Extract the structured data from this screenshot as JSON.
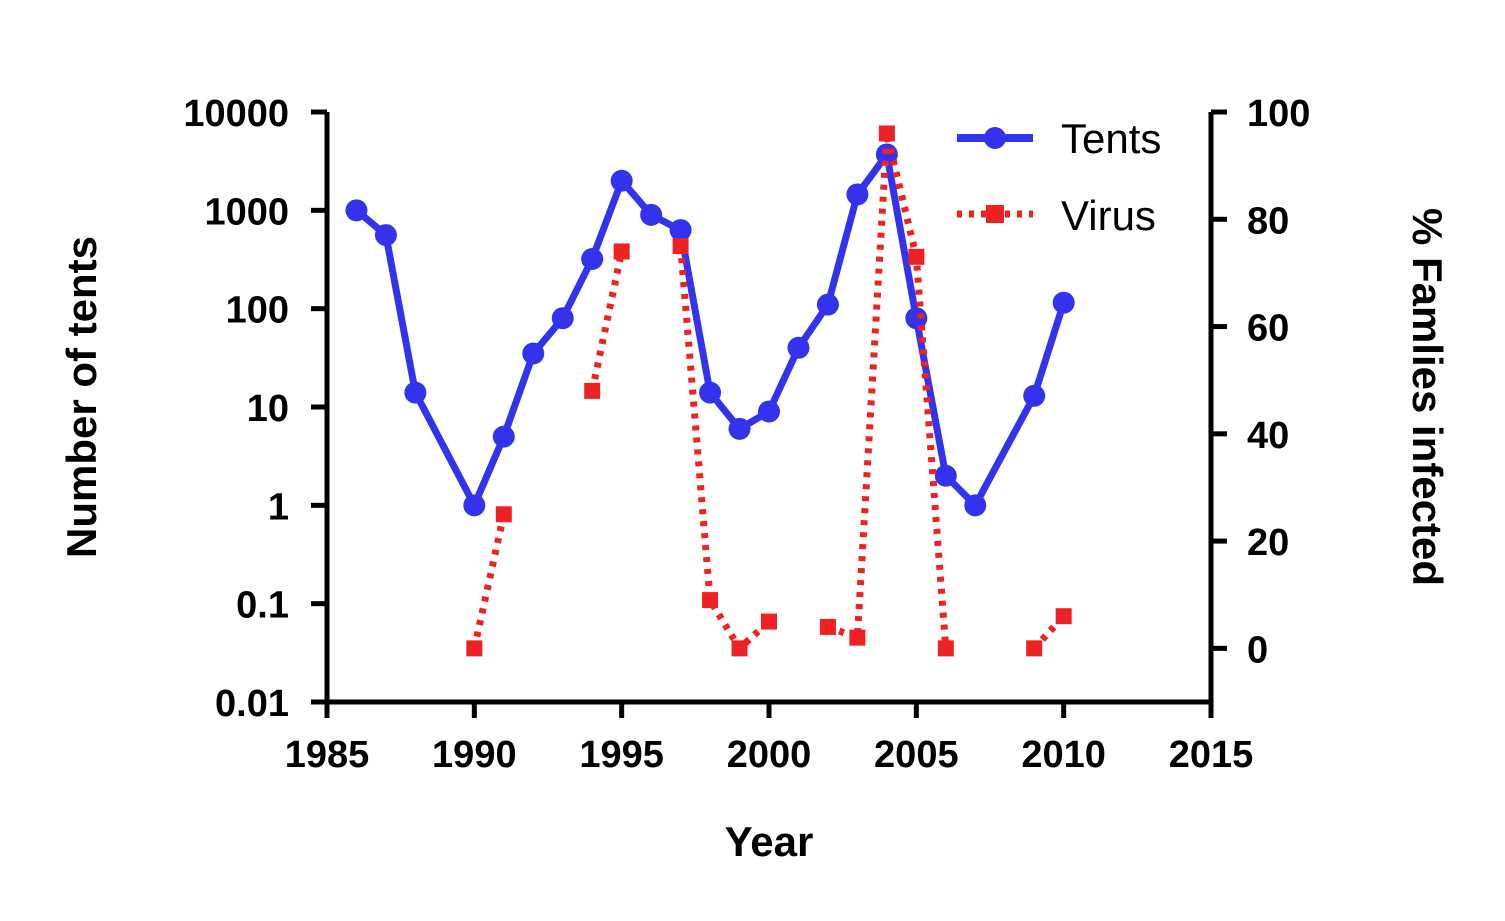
{
  "chart_data": {
    "type": "line",
    "title": "",
    "xlabel": "Year",
    "ylabel_left": "Number of tents",
    "ylabel_right": "% Famlies infected",
    "xlim": [
      1985,
      2015
    ],
    "x_ticks": [
      "1985",
      "1990",
      "1995",
      "2000",
      "2005",
      "2010",
      "2015"
    ],
    "ylim_left": [
      0.01,
      10000
    ],
    "ylim_left_scale": "log",
    "y_left_ticks": [
      "0.01",
      "0.1",
      "1",
      "10",
      "100",
      "1000",
      "10000"
    ],
    "ylim_right": [
      -10,
      100
    ],
    "y_right_ticks": [
      "0",
      "20",
      "40",
      "60",
      "80",
      "100"
    ],
    "legend_position": "top-right",
    "series": [
      {
        "name": "Tents",
        "axis": "left",
        "color": "#3333ee",
        "style": "solid",
        "marker": "circle",
        "segments": [
          [
            {
              "x": 1986,
              "y": 1000
            },
            {
              "x": 1987,
              "y": 560
            },
            {
              "x": 1988,
              "y": 14
            },
            {
              "x": 1990,
              "y": 1
            },
            {
              "x": 1991,
              "y": 5
            },
            {
              "x": 1992,
              "y": 35
            },
            {
              "x": 1993,
              "y": 80
            },
            {
              "x": 1994,
              "y": 320
            },
            {
              "x": 1995,
              "y": 2000
            },
            {
              "x": 1996,
              "y": 900
            },
            {
              "x": 1997,
              "y": 630
            },
            {
              "x": 1998,
              "y": 14
            },
            {
              "x": 1999,
              "y": 6
            },
            {
              "x": 2000,
              "y": 9
            },
            {
              "x": 2001,
              "y": 40
            },
            {
              "x": 2002,
              "y": 110
            },
            {
              "x": 2003,
              "y": 1450
            },
            {
              "x": 2004,
              "y": 3700
            },
            {
              "x": 2005,
              "y": 80
            },
            {
              "x": 2006,
              "y": 2
            },
            {
              "x": 2007,
              "y": 1
            },
            {
              "x": 2009,
              "y": 13
            },
            {
              "x": 2010,
              "y": 115
            }
          ]
        ]
      },
      {
        "name": "Virus",
        "axis": "right",
        "color": "#ee2222",
        "style": "dotted",
        "marker": "square",
        "segments": [
          [
            {
              "x": 1990,
              "y": 0
            },
            {
              "x": 1991,
              "y": 25
            }
          ],
          [
            {
              "x": 1994,
              "y": 48
            },
            {
              "x": 1995,
              "y": 74
            }
          ],
          [
            {
              "x": 1997,
              "y": 75
            },
            {
              "x": 1998,
              "y": 9
            },
            {
              "x": 1999,
              "y": 0
            },
            {
              "x": 2000,
              "y": 5
            }
          ],
          [
            {
              "x": 2002,
              "y": 4
            },
            {
              "x": 2003,
              "y": 2
            },
            {
              "x": 2004,
              "y": 96
            },
            {
              "x": 2005,
              "y": 73
            },
            {
              "x": 2006,
              "y": 0
            }
          ],
          [
            {
              "x": 2009,
              "y": 0
            },
            {
              "x": 2010,
              "y": 6
            }
          ]
        ]
      }
    ]
  }
}
